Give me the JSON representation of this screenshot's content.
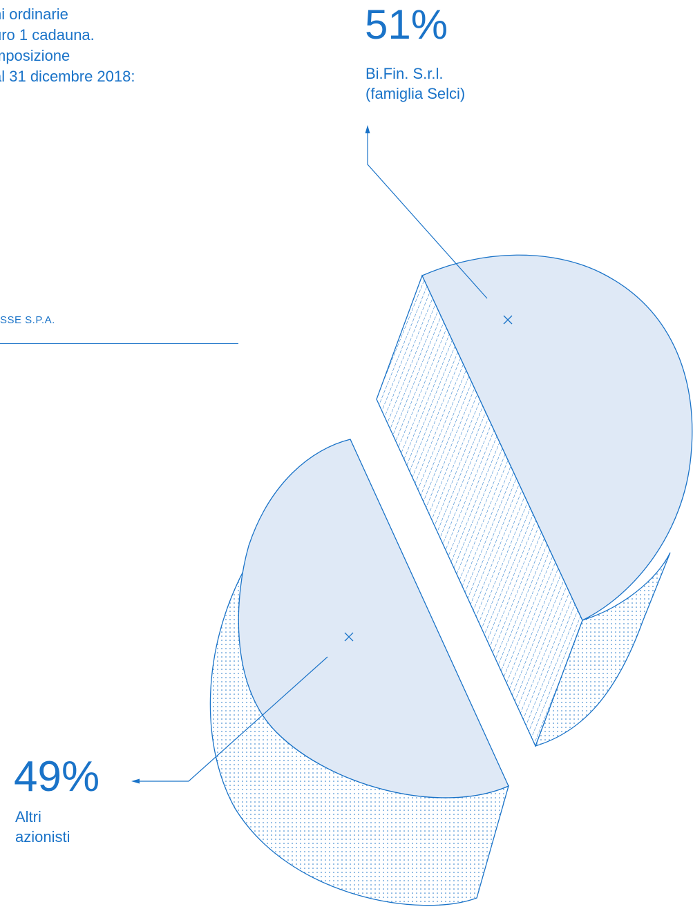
{
  "intro": {
    "lines": [
      "ni ordinarie",
      "uro 1 cadauna.",
      "mposizione",
      "al 31 dicembre 2018:"
    ]
  },
  "company_label": "SSE S.P.A.",
  "colors": {
    "accent": "#1a73c8",
    "slice_fill": "#dfe9f6"
  },
  "chart_data": {
    "type": "pie",
    "style": "exploded 3D pie",
    "slices": [
      {
        "value": 51,
        "label": "51%",
        "name_lines": [
          "Bi.Fin. S.r.l.",
          "(famiglia Selci)"
        ]
      },
      {
        "value": 49,
        "label": "49%",
        "name_lines": [
          "Altri",
          "azionisti"
        ]
      }
    ]
  }
}
